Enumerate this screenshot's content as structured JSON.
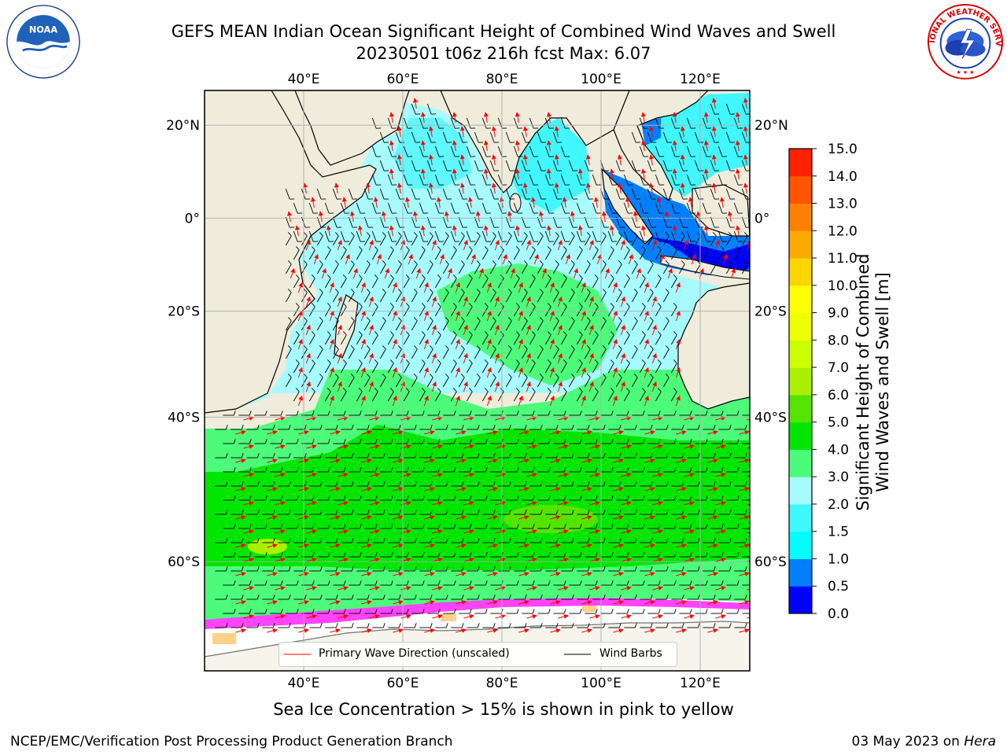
{
  "title": {
    "line1": "GEFS MEAN Indian Ocean Significant Height of Combined Wind Waves and Swell",
    "line2": "20230501 t06z 216h fcst   Max: 6.07"
  },
  "logos": {
    "left": "noaa-logo",
    "right": "nws-logo",
    "right_text": "NATIONAL WEATHER SERVICE"
  },
  "map": {
    "lon_labels": [
      "40°E",
      "60°E",
      "80°E",
      "100°E",
      "120°E"
    ],
    "lon_values": [
      40,
      60,
      80,
      100,
      120
    ],
    "lat_labels_left": [
      "20°N",
      "0°",
      "20°S",
      "40°S",
      "60°S"
    ],
    "lat_labels_right": [
      "20°N",
      "0°",
      "20°S",
      "40°S",
      "60°S"
    ],
    "lat_values": [
      20,
      0,
      -20,
      -40,
      -60
    ],
    "extent": {
      "lon": [
        20,
        130
      ],
      "lat": [
        -70,
        27
      ]
    },
    "projection": "mercator"
  },
  "colorbar": {
    "ticks": [
      "0.0",
      "0.5",
      "1.0",
      "1.5",
      "2.0",
      "3.0",
      "4.0",
      "5.0",
      "6.0",
      "7.0",
      "8.0",
      "9.0",
      "10.0",
      "11.0",
      "12.0",
      "13.0",
      "14.0",
      "15.0"
    ],
    "colors": [
      "#0000ff",
      "#0080ff",
      "#00ffff",
      "#40f7ff",
      "#a7fbff",
      "#4dfb7a",
      "#00e600",
      "#55e400",
      "#aaf000",
      "#ccff00",
      "#eeff00",
      "#ffff00",
      "#ffd500",
      "#ffaa00",
      "#ff8000",
      "#ff5500",
      "#ff2200"
    ],
    "label_line1": "Significant Height of Combined",
    "label_line2": "Wind Waves and Swell [m]"
  },
  "legend": {
    "wave_label": "Primary Wave Direction (unscaled)",
    "wind_label": "Wind Barbs",
    "wave_color": "#ff0000",
    "wind_color": "#000000"
  },
  "footnote": "Sea Ice Concentration > 15% is shown in pink to yellow",
  "credit": "NCEP/EMC/Verification Post Processing Product Generation Branch",
  "date": {
    "text": "03 May 2023 on ",
    "machine": "Hera"
  }
}
